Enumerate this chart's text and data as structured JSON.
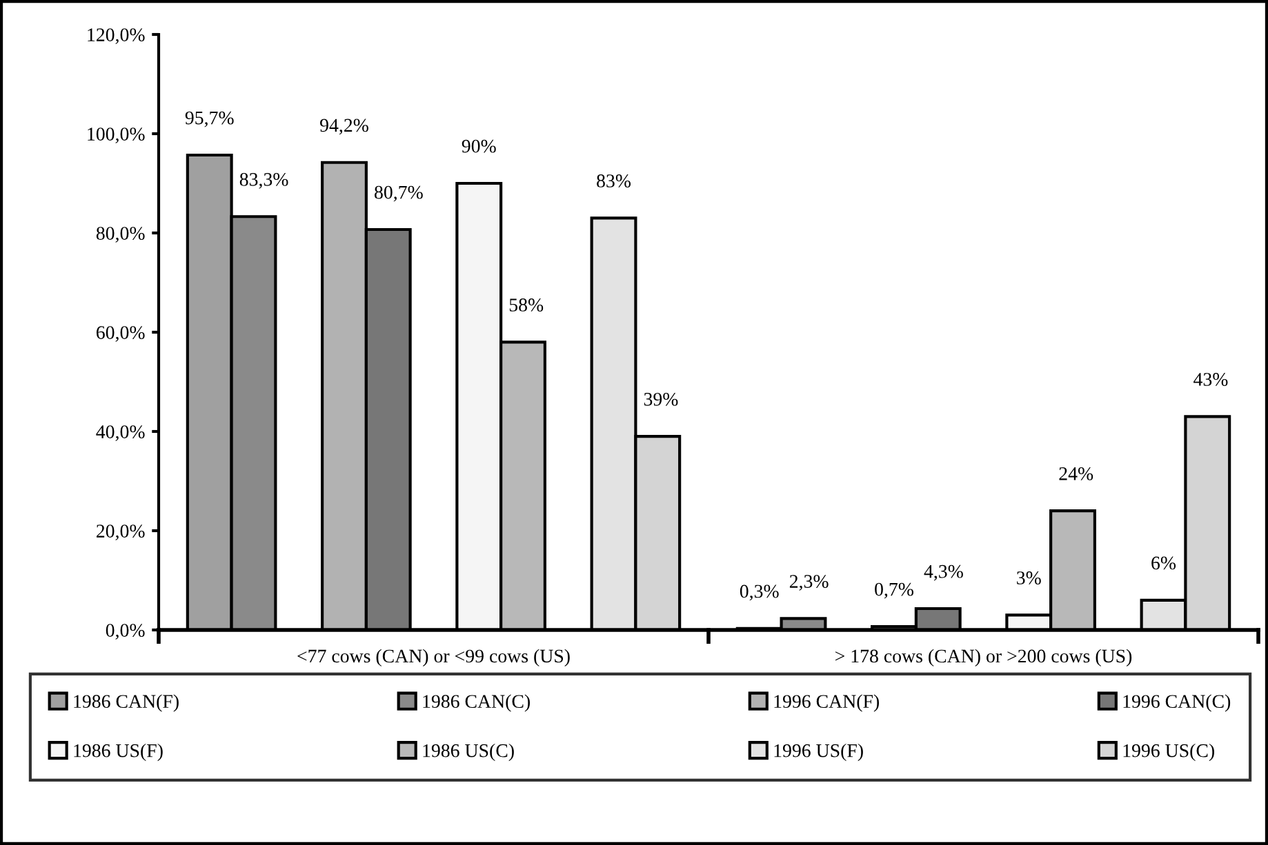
{
  "chart_data": {
    "type": "bar",
    "categories": [
      "<77 cows (CAN) or <99 cows (US)",
      "> 178 cows (CAN) or >200 cows (US)"
    ],
    "series": [
      {
        "name": "1986 CAN(F)",
        "color": "#a0a0a0",
        "values": [
          95.7,
          0.3
        ],
        "value_labels": [
          "95,7%",
          "0,3%"
        ]
      },
      {
        "name": "1986 CAN(C)",
        "color": "#8a8a8a",
        "values": [
          83.3,
          2.3
        ],
        "value_labels": [
          "83,3%",
          "2,3%"
        ]
      },
      {
        "name": "1996 CAN(F)",
        "color": "#b2b2b2",
        "values": [
          94.2,
          0.7
        ],
        "value_labels": [
          "94,2%",
          "0,7%"
        ]
      },
      {
        "name": "1996 CAN(C)",
        "color": "#777777",
        "values": [
          80.7,
          4.3
        ],
        "value_labels": [
          "80,7%",
          "4,3%"
        ]
      },
      {
        "name": "1986 US(F)",
        "color": "#f5f5f5",
        "values": [
          90,
          3
        ],
        "value_labels": [
          "90%",
          "3%"
        ]
      },
      {
        "name": "1986 US(C)",
        "color": "#b8b8b8",
        "values": [
          58,
          24
        ],
        "value_labels": [
          "58%",
          "24%"
        ]
      },
      {
        "name": "1996 US(F)",
        "color": "#e3e3e3",
        "values": [
          83,
          6
        ],
        "value_labels": [
          "83%",
          "6%"
        ]
      },
      {
        "name": "1996 US(C)",
        "color": "#d4d4d4",
        "values": [
          39,
          43
        ],
        "value_labels": [
          "39%",
          "43%"
        ]
      }
    ],
    "ylim": [
      0,
      120
    ],
    "yticks": [
      {
        "value": 0,
        "label": "0,0%"
      },
      {
        "value": 20,
        "label": "20,0%"
      },
      {
        "value": 40,
        "label": "40,0%"
      },
      {
        "value": 60,
        "label": "60,0%"
      },
      {
        "value": 80,
        "label": "80,0%"
      },
      {
        "value": 100,
        "label": "100,0%"
      },
      {
        "value": 120,
        "label": "120,0%"
      }
    ],
    "grid": false,
    "legend": "bottom"
  }
}
